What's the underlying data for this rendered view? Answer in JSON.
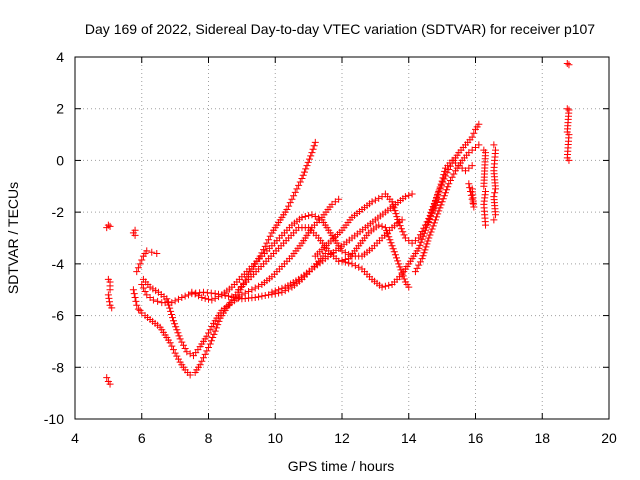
{
  "chart_data": {
    "type": "scatter",
    "title": "Day 169 of 2022, Sidereal Day-to-day VTEC variation (SDTVAR) for receiver p107",
    "xlabel": "GPS time / hours",
    "ylabel": "SDTVAR / TECUs",
    "xlim": [
      4,
      20
    ],
    "ylim": [
      -10,
      4
    ],
    "x_ticks": [
      "4",
      "6",
      "8",
      "10",
      "12",
      "14",
      "16",
      "18",
      "20"
    ],
    "y_ticks": [
      "-10",
      "-8",
      "-6",
      "-4",
      "-2",
      "0",
      "2",
      "4"
    ],
    "grid": true,
    "marker": "+",
    "color": "#ff0000",
    "series": [
      {
        "values": [
          [
            4.95,
            -2.6
          ],
          [
            5.0,
            -2.5
          ],
          [
            5.05,
            -2.55
          ]
        ]
      },
      {
        "values": [
          [
            4.95,
            -8.4
          ],
          [
            5.0,
            -8.55
          ],
          [
            5.05,
            -8.65
          ]
        ]
      },
      {
        "values": [
          [
            5.0,
            -4.6
          ],
          [
            5.05,
            -4.7
          ],
          [
            5.05,
            -5.0
          ],
          [
            5.0,
            -5.2
          ],
          [
            5.05,
            -5.6
          ],
          [
            5.1,
            -5.7
          ]
        ]
      },
      {
        "values": [
          [
            5.75,
            -2.8
          ],
          [
            5.8,
            -2.7
          ],
          [
            5.8,
            -2.9
          ]
        ]
      },
      {
        "values": [
          [
            5.75,
            -5.0
          ],
          [
            5.8,
            -5.3
          ],
          [
            5.85,
            -5.6
          ],
          [
            5.9,
            -5.75
          ],
          [
            5.95,
            -5.8
          ],
          [
            6.0,
            -5.9
          ],
          [
            6.1,
            -6.0
          ],
          [
            6.25,
            -6.15
          ],
          [
            6.4,
            -6.3
          ],
          [
            6.55,
            -6.45
          ],
          [
            6.7,
            -6.75
          ],
          [
            6.85,
            -7.05
          ],
          [
            7.0,
            -7.45
          ],
          [
            7.15,
            -7.8
          ],
          [
            7.3,
            -8.1
          ],
          [
            7.45,
            -8.3
          ],
          [
            7.6,
            -8.2
          ],
          [
            7.75,
            -7.9
          ],
          [
            7.9,
            -7.5
          ],
          [
            8.05,
            -7.1
          ],
          [
            8.2,
            -6.6
          ],
          [
            8.35,
            -6.1
          ],
          [
            8.55,
            -5.7
          ],
          [
            8.75,
            -5.3
          ],
          [
            8.95,
            -5.0
          ],
          [
            9.15,
            -4.5
          ],
          [
            9.35,
            -4.1
          ],
          [
            9.55,
            -3.7
          ],
          [
            9.75,
            -3.2
          ],
          [
            9.9,
            -2.8
          ],
          [
            10.05,
            -2.5
          ],
          [
            10.2,
            -2.2
          ],
          [
            10.35,
            -1.9
          ],
          [
            10.5,
            -1.5
          ],
          [
            10.65,
            -1.1
          ],
          [
            10.8,
            -0.7
          ],
          [
            10.95,
            -0.2
          ],
          [
            11.1,
            0.3
          ],
          [
            11.2,
            0.7
          ]
        ]
      },
      {
        "values": [
          [
            5.85,
            -4.3
          ],
          [
            5.95,
            -4.0
          ],
          [
            6.05,
            -3.7
          ],
          [
            6.15,
            -3.5
          ],
          [
            6.3,
            -3.55
          ],
          [
            6.45,
            -3.6
          ]
        ]
      },
      {
        "values": [
          [
            6.0,
            -4.8
          ],
          [
            6.15,
            -5.2
          ],
          [
            6.35,
            -5.4
          ],
          [
            6.6,
            -5.5
          ],
          [
            6.9,
            -5.5
          ],
          [
            7.2,
            -5.3
          ],
          [
            7.5,
            -5.15
          ],
          [
            7.85,
            -5.1
          ],
          [
            8.2,
            -5.15
          ],
          [
            8.6,
            -5.25
          ],
          [
            9.0,
            -5.35
          ],
          [
            9.4,
            -5.3
          ],
          [
            9.8,
            -5.2
          ],
          [
            10.2,
            -5.1
          ],
          [
            10.5,
            -4.9
          ],
          [
            10.8,
            -4.6
          ],
          [
            11.1,
            -4.2
          ],
          [
            11.3,
            -3.9
          ],
          [
            11.5,
            -3.6
          ]
        ]
      },
      {
        "values": [
          [
            6.05,
            -4.6
          ],
          [
            6.25,
            -4.9
          ],
          [
            6.5,
            -5.1
          ],
          [
            6.75,
            -5.35
          ],
          [
            6.95,
            -6.2
          ],
          [
            7.15,
            -6.9
          ],
          [
            7.35,
            -7.4
          ],
          [
            7.55,
            -7.55
          ],
          [
            7.75,
            -7.2
          ],
          [
            7.95,
            -6.8
          ],
          [
            8.15,
            -6.3
          ],
          [
            8.4,
            -5.8
          ],
          [
            8.7,
            -5.5
          ],
          [
            9.0,
            -5.2
          ],
          [
            9.3,
            -5.0
          ],
          [
            9.6,
            -4.8
          ],
          [
            9.9,
            -4.5
          ],
          [
            10.2,
            -4.1
          ],
          [
            10.5,
            -3.7
          ],
          [
            10.8,
            -3.2
          ],
          [
            11.1,
            -2.6
          ],
          [
            11.4,
            -2.2
          ],
          [
            11.7,
            -1.7
          ],
          [
            11.9,
            -1.5
          ]
        ]
      },
      {
        "values": [
          [
            7.5,
            -5.1
          ],
          [
            7.8,
            -5.3
          ],
          [
            8.1,
            -5.4
          ],
          [
            8.4,
            -5.2
          ],
          [
            8.7,
            -4.9
          ],
          [
            9.0,
            -4.5
          ],
          [
            9.3,
            -4.1
          ],
          [
            9.6,
            -3.7
          ],
          [
            9.9,
            -3.3
          ],
          [
            10.2,
            -2.9
          ],
          [
            10.5,
            -2.5
          ],
          [
            10.8,
            -2.2
          ],
          [
            11.1,
            -2.1
          ],
          [
            11.4,
            -2.3
          ],
          [
            11.7,
            -2.9
          ],
          [
            12.0,
            -3.5
          ],
          [
            12.3,
            -3.7
          ],
          [
            12.6,
            -3.7
          ],
          [
            12.9,
            -3.4
          ],
          [
            13.2,
            -3.0
          ],
          [
            13.5,
            -2.6
          ],
          [
            13.8,
            -2.3
          ]
        ]
      },
      {
        "values": [
          [
            8.9,
            -5.0
          ],
          [
            9.2,
            -4.6
          ],
          [
            9.5,
            -4.2
          ],
          [
            9.8,
            -3.8
          ],
          [
            10.1,
            -3.4
          ],
          [
            10.4,
            -3.0
          ],
          [
            10.7,
            -2.6
          ],
          [
            11.0,
            -2.6
          ],
          [
            11.3,
            -3.0
          ],
          [
            11.6,
            -3.5
          ],
          [
            11.9,
            -3.9
          ],
          [
            12.2,
            -3.8
          ],
          [
            12.5,
            -3.3
          ],
          [
            12.8,
            -2.8
          ],
          [
            13.1,
            -2.5
          ],
          [
            13.3,
            -2.6
          ],
          [
            13.5,
            -3.3
          ],
          [
            13.7,
            -4.0
          ],
          [
            13.9,
            -4.7
          ],
          [
            14.0,
            -4.9
          ]
        ]
      },
      {
        "values": [
          [
            9.9,
            -5.1
          ],
          [
            10.3,
            -4.9
          ],
          [
            10.7,
            -4.6
          ],
          [
            11.1,
            -4.2
          ],
          [
            11.5,
            -3.8
          ],
          [
            11.9,
            -3.4
          ],
          [
            12.3,
            -3.0
          ],
          [
            12.7,
            -2.6
          ],
          [
            13.0,
            -2.3
          ],
          [
            13.3,
            -2.0
          ],
          [
            13.6,
            -1.7
          ],
          [
            13.9,
            -1.4
          ],
          [
            14.1,
            -1.3
          ]
        ]
      },
      {
        "values": [
          [
            11.2,
            -3.7
          ],
          [
            11.6,
            -3.2
          ],
          [
            12.0,
            -2.7
          ],
          [
            12.3,
            -2.2
          ],
          [
            12.6,
            -1.9
          ],
          [
            12.9,
            -1.6
          ],
          [
            13.2,
            -1.4
          ],
          [
            13.3,
            -1.3
          ],
          [
            13.5,
            -1.6
          ],
          [
            13.7,
            -2.4
          ],
          [
            13.9,
            -3.0
          ],
          [
            14.1,
            -3.2
          ],
          [
            14.3,
            -3.0
          ],
          [
            14.5,
            -2.5
          ],
          [
            14.7,
            -2.0
          ],
          [
            14.9,
            -1.5
          ]
        ]
      },
      {
        "values": [
          [
            12.0,
            -3.9
          ],
          [
            12.3,
            -4.0
          ],
          [
            12.6,
            -4.2
          ],
          [
            12.9,
            -4.6
          ],
          [
            13.2,
            -4.9
          ],
          [
            13.5,
            -4.8
          ],
          [
            13.8,
            -4.4
          ],
          [
            14.0,
            -4.0
          ],
          [
            14.3,
            -3.4
          ],
          [
            14.5,
            -2.7
          ],
          [
            14.7,
            -1.9
          ],
          [
            14.9,
            -1.2
          ],
          [
            15.1,
            -0.6
          ],
          [
            15.3,
            -0.1
          ],
          [
            15.5,
            0.3
          ],
          [
            15.7,
            0.6
          ],
          [
            15.9,
            0.9
          ],
          [
            16.0,
            1.2
          ],
          [
            16.1,
            1.4
          ]
        ]
      },
      {
        "values": [
          [
            14.2,
            -4.3
          ],
          [
            14.4,
            -3.8
          ],
          [
            14.6,
            -3.0
          ],
          [
            14.8,
            -2.3
          ],
          [
            15.0,
            -1.6
          ],
          [
            15.2,
            -0.9
          ],
          [
            15.4,
            -0.4
          ],
          [
            15.6,
            0.0
          ],
          [
            15.8,
            0.3
          ],
          [
            16.0,
            0.5
          ],
          [
            16.1,
            0.6
          ]
        ]
      },
      {
        "values": [
          [
            14.6,
            -2.4
          ],
          [
            14.8,
            -1.6
          ],
          [
            15.0,
            -0.8
          ],
          [
            15.1,
            -0.3
          ],
          [
            15.3,
            0.0
          ],
          [
            15.5,
            -0.2
          ],
          [
            15.7,
            -0.4
          ],
          [
            15.9,
            -0.2
          ]
        ]
      },
      {
        "values": [
          [
            15.8,
            -0.9
          ],
          [
            15.85,
            -1.2
          ],
          [
            15.9,
            -1.5
          ],
          [
            15.95,
            -1.8
          ],
          [
            15.9,
            -1.1
          ]
        ]
      },
      {
        "values": [
          [
            16.25,
            0.4
          ],
          [
            16.3,
            0.3
          ],
          [
            16.25,
            -1.0
          ],
          [
            16.3,
            -1.2
          ],
          [
            16.25,
            -1.7
          ],
          [
            16.3,
            -2.5
          ]
        ]
      },
      {
        "values": [
          [
            16.55,
            0.6
          ],
          [
            16.6,
            0.4
          ],
          [
            16.55,
            -0.4
          ],
          [
            16.6,
            -1.1
          ],
          [
            16.55,
            -1.4
          ],
          [
            16.6,
            -2.1
          ],
          [
            16.55,
            -2.3
          ]
        ]
      },
      {
        "values": [
          [
            18.75,
            3.75
          ],
          [
            18.8,
            3.7
          ],
          [
            18.75,
            2.0
          ],
          [
            18.8,
            1.95
          ],
          [
            18.75,
            1.1
          ],
          [
            18.8,
            1.0
          ],
          [
            18.75,
            0.1
          ],
          [
            18.8,
            0.0
          ]
        ]
      }
    ]
  }
}
